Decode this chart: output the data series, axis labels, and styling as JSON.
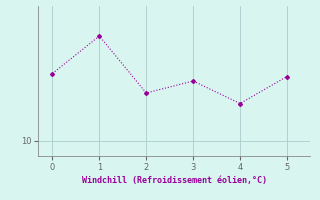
{
  "x": [
    0,
    1,
    2,
    3,
    4,
    5
  ],
  "y": [
    14.5,
    17.0,
    13.2,
    14.0,
    12.5,
    14.3
  ],
  "line_color": "#990099",
  "marker": "D",
  "marker_size": 2,
  "bg_color": "#d8f5f0",
  "grid_color": "#aacccc",
  "xlabel": "Windchill (Refroidissement éolien,°C)",
  "xlabel_color": "#990099",
  "tick_color": "#666666",
  "xlim": [
    -0.3,
    5.5
  ],
  "ylim": [
    9.0,
    19.0
  ],
  "yticks": [
    10
  ],
  "xticks": [
    0,
    1,
    2,
    3,
    4,
    5
  ]
}
